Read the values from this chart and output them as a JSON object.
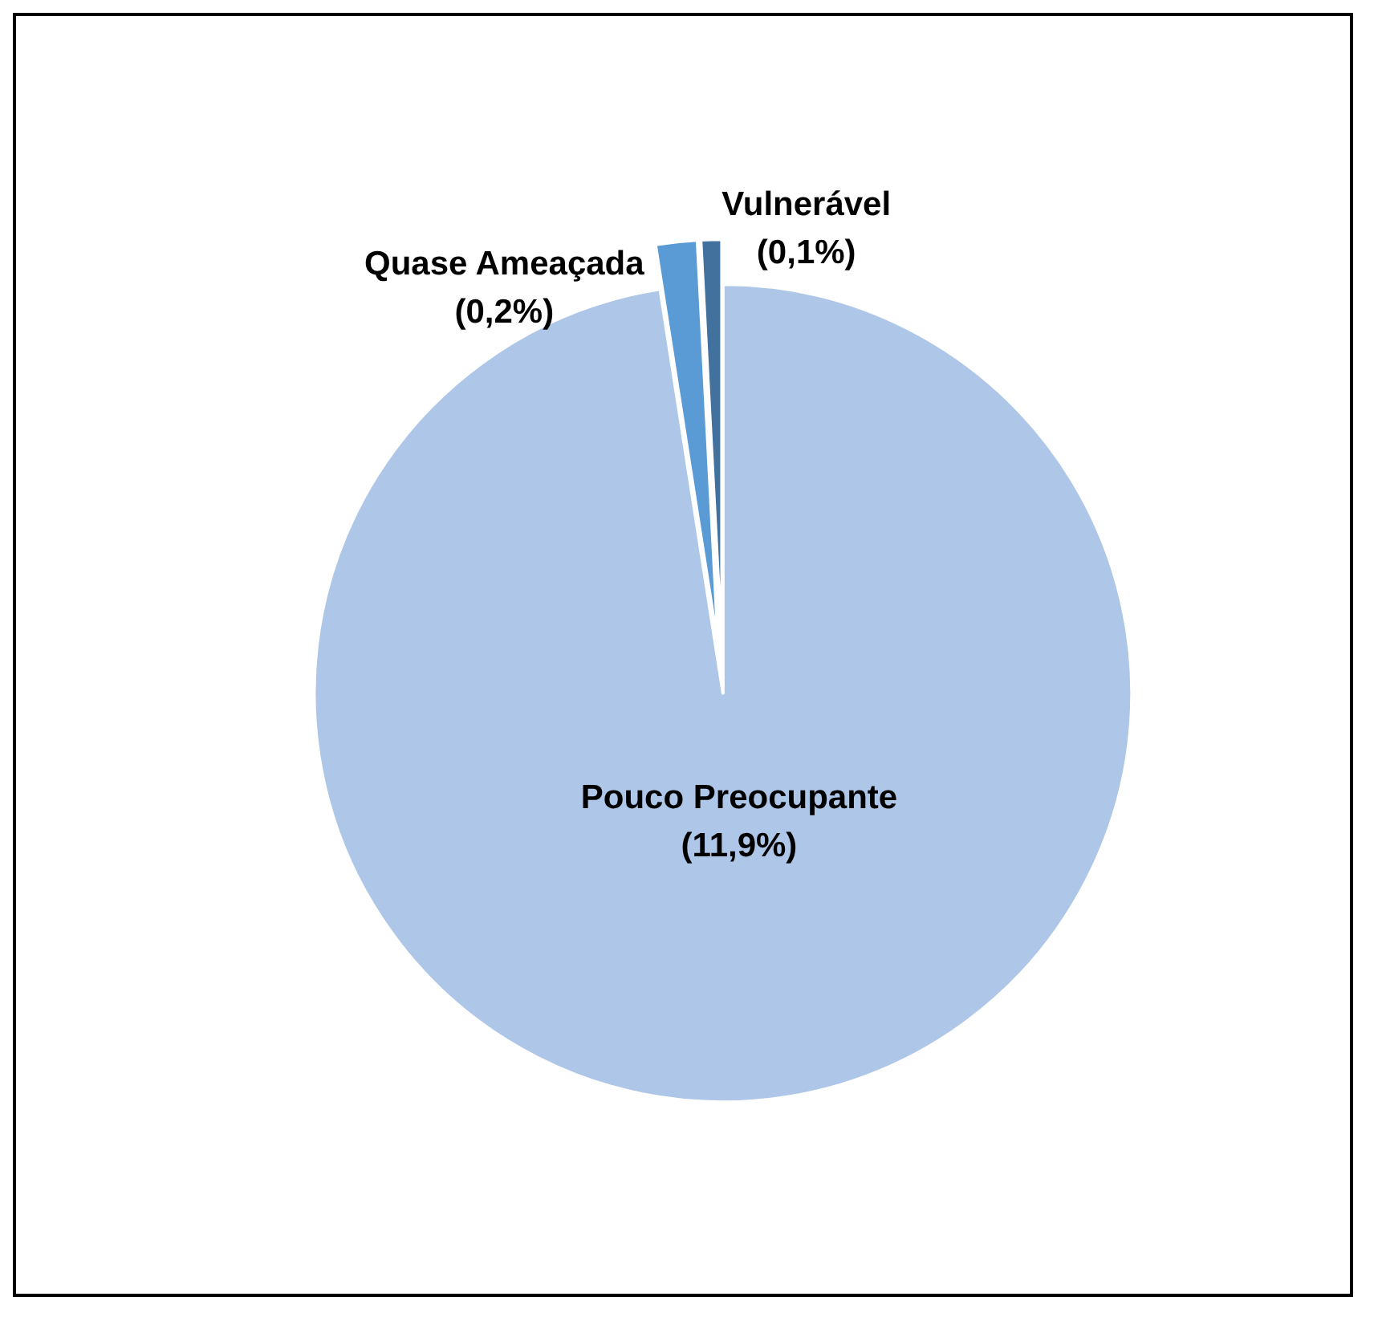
{
  "chart_data": {
    "type": "pie",
    "categories": [
      "Pouco Preocupante",
      "Quase Ameaçada",
      "Vulnerável"
    ],
    "values": [
      11.9,
      0.2,
      0.1
    ],
    "value_labels": [
      "(11,9%)",
      "(0,2%)",
      "(0,1%)"
    ],
    "colors": [
      "#aec6e8",
      "#5b9bd5",
      "#41719c"
    ],
    "legend": false
  }
}
